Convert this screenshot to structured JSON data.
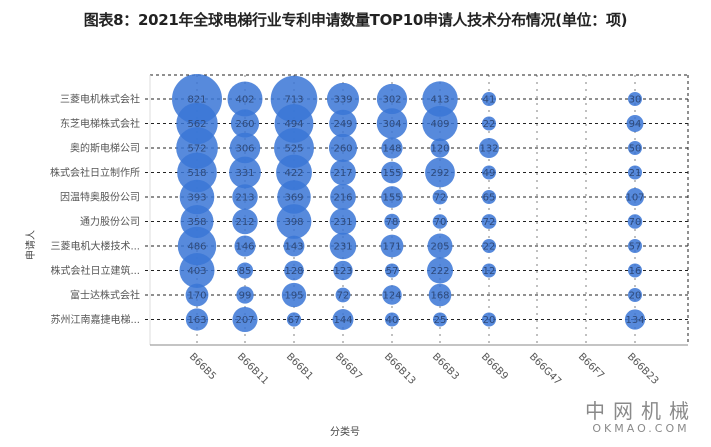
{
  "title": "图表8：2021年全球电梯行业专利申请数量TOP10申请人技术分布情况(单位：项)",
  "watermark": {
    "cn": "中网机械",
    "en": "OKMAO.COM"
  },
  "colors": {
    "bubble": "#3a75d6",
    "grid": "#222222",
    "axis": "#888888"
  },
  "chart_data": {
    "type": "bubble-matrix",
    "title": "图表8：2021年全球电梯行业专利申请数量TOP10申请人技术分布情况(单位：项)",
    "xlabel": "分类号",
    "ylabel": "申请人",
    "categories_x": [
      "B66B5",
      "B66B11",
      "B66B1",
      "B66B7",
      "B66B13",
      "B66B3",
      "B66B9",
      "B66G47",
      "B66F7",
      "B66B23"
    ],
    "categories_y": [
      "三菱电机株式会社",
      "东芝电梯株式会社",
      "奥的斯电梯公司",
      "株式会社日立制作所",
      "因温特奥股份公司",
      "通力股份公司",
      "三菱电机大楼技术...",
      "株式会社日立建筑...",
      "富士达株式会社",
      "苏州江南嘉捷电梯..."
    ],
    "grid": true,
    "values": [
      [
        821,
        402,
        713,
        339,
        302,
        413,
        41,
        null,
        null,
        30
      ],
      [
        562,
        260,
        494,
        249,
        304,
        409,
        22,
        null,
        null,
        94
      ],
      [
        572,
        306,
        525,
        260,
        148,
        120,
        132,
        null,
        null,
        50
      ],
      [
        518,
        331,
        422,
        217,
        155,
        292,
        49,
        null,
        null,
        21
      ],
      [
        393,
        213,
        369,
        216,
        155,
        72,
        65,
        null,
        null,
        107
      ],
      [
        358,
        212,
        398,
        231,
        78,
        70,
        72,
        null,
        null,
        70
      ],
      [
        486,
        146,
        143,
        231,
        171,
        205,
        22,
        null,
        null,
        57
      ],
      [
        403,
        85,
        128,
        123,
        57,
        222,
        12,
        null,
        null,
        16
      ],
      [
        170,
        99,
        195,
        72,
        124,
        168,
        null,
        null,
        null,
        20
      ],
      [
        163,
        207,
        67,
        144,
        40,
        25,
        20,
        null,
        null,
        134
      ]
    ]
  }
}
